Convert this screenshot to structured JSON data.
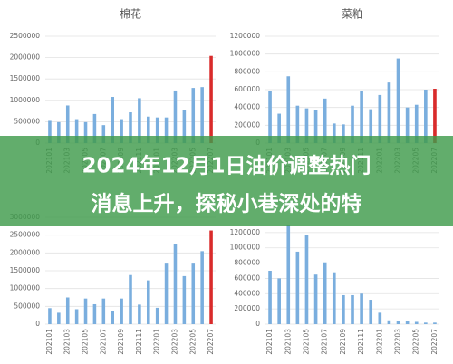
{
  "chart_data": [
    {
      "type": "bar",
      "title": "棉花",
      "categories": [
        "202101",
        null,
        "202103",
        null,
        "202105",
        null,
        "202107",
        null,
        "202109",
        null,
        "202111",
        null,
        "202201",
        null,
        "202203",
        null,
        "202205",
        null,
        "202207"
      ],
      "values": [
        520000,
        490000,
        880000,
        560000,
        490000,
        680000,
        420000,
        1080000,
        560000,
        720000,
        1050000,
        620000,
        600000,
        600000,
        1230000,
        770000,
        1290000,
        1310000,
        2040000
      ],
      "colors": [
        "#7aaede",
        "#7aaede",
        "#7aaede",
        "#7aaede",
        "#7aaede",
        "#7aaede",
        "#7aaede",
        "#7aaede",
        "#7aaede",
        "#7aaede",
        "#7aaede",
        "#7aaede",
        "#7aaede",
        "#7aaede",
        "#7aaede",
        "#7aaede",
        "#7aaede",
        "#7aaede",
        "#d92b2b"
      ],
      "ylim": [
        0,
        2500000
      ],
      "yticks": [
        0,
        500000,
        1000000,
        1500000,
        2000000,
        2500000
      ],
      "grid": true
    },
    {
      "type": "bar",
      "title": "菜粕",
      "categories": [
        "202101",
        null,
        "202103",
        null,
        "202105",
        null,
        "202107",
        null,
        "202109",
        null,
        "202111",
        null,
        "202201",
        null,
        "202203",
        null,
        "202205",
        null,
        "202207"
      ],
      "values": [
        580000,
        330000,
        750000,
        420000,
        390000,
        370000,
        500000,
        220000,
        210000,
        420000,
        580000,
        380000,
        540000,
        680000,
        950000,
        400000,
        430000,
        600000,
        610000
      ],
      "colors": [
        "#7aaede",
        "#7aaede",
        "#7aaede",
        "#7aaede",
        "#7aaede",
        "#7aaede",
        "#7aaede",
        "#7aaede",
        "#7aaede",
        "#7aaede",
        "#7aaede",
        "#7aaede",
        "#7aaede",
        "#7aaede",
        "#7aaede",
        "#7aaede",
        "#7aaede",
        "#7aaede",
        "#d92b2b"
      ],
      "ylim": [
        0,
        1200000
      ],
      "yticks": [
        0,
        200000,
        400000,
        600000,
        800000,
        1000000,
        1200000
      ],
      "grid": true
    },
    {
      "type": "bar",
      "categories": [
        "202101",
        null,
        "202103",
        null,
        "202105",
        null,
        "202107",
        null,
        "202109",
        null,
        "202111",
        null,
        "202201",
        null,
        "202203",
        null,
        "202205",
        null,
        "202207"
      ],
      "values": [
        450000,
        320000,
        750000,
        420000,
        720000,
        560000,
        720000,
        380000,
        720000,
        1380000,
        550000,
        1230000,
        460000,
        1700000,
        2250000,
        1350000,
        1700000,
        2050000,
        2630000
      ],
      "colors": [
        "#7aaede",
        "#7aaede",
        "#7aaede",
        "#7aaede",
        "#7aaede",
        "#7aaede",
        "#7aaede",
        "#7aaede",
        "#7aaede",
        "#7aaede",
        "#7aaede",
        "#7aaede",
        "#7aaede",
        "#7aaede",
        "#7aaede",
        "#7aaede",
        "#7aaede",
        "#7aaede",
        "#d92b2b"
      ],
      "ylim": [
        0,
        3000000
      ],
      "yticks": [
        0,
        500000,
        1000000,
        1500000,
        2000000,
        2500000,
        3000000
      ],
      "grid": true
    },
    {
      "type": "bar",
      "categories": [
        "202101",
        null,
        "202103",
        null,
        "202105",
        null,
        "202107",
        null,
        "202109",
        null,
        "202111",
        null,
        "202201",
        null,
        "202203",
        null,
        "202205",
        null,
        "202207"
      ],
      "values": [
        700000,
        600000,
        1300000,
        950000,
        1170000,
        650000,
        810000,
        680000,
        380000,
        380000,
        400000,
        320000,
        150000,
        50000,
        40000,
        40000,
        30000,
        20000,
        20000
      ],
      "colors": [
        "#7aaede",
        "#7aaede",
        "#7aaede",
        "#7aaede",
        "#7aaede",
        "#7aaede",
        "#7aaede",
        "#7aaede",
        "#7aaede",
        "#7aaede",
        "#7aaede",
        "#7aaede",
        "#7aaede",
        "#7aaede",
        "#7aaede",
        "#7aaede",
        "#7aaede",
        "#7aaede",
        "#7aaede"
      ],
      "ylim": [
        0,
        1400000
      ],
      "yticks": [
        0,
        200000,
        400000,
        600000,
        800000,
        1000000,
        1200000
      ],
      "grid": true
    }
  ],
  "banner": {
    "lines": [
      "2024年12月1日油价调整热门",
      "消息上升，探秘小巷深处的特"
    ]
  }
}
